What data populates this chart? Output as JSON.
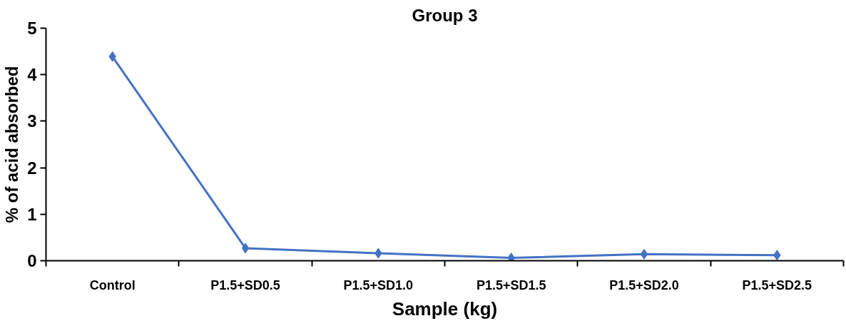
{
  "chart_data": {
    "type": "line",
    "title": "Group 3",
    "xlabel": "Sample (kg)",
    "ylabel": "% of acid absorbed",
    "categories": [
      "Control",
      "P1.5+SD0.5",
      "P1.5+SD1.0",
      "P1.5+SD1.5",
      "P1.5+SD2.0",
      "P1.5+SD2.5"
    ],
    "series": [
      {
        "color": "#4472c4",
        "values": [
          4.39,
          0.27,
          0.16,
          0.06,
          0.14,
          0.12
        ]
      }
    ],
    "ylim": [
      0,
      5
    ],
    "yticks": [
      0,
      1,
      2,
      3,
      4,
      5
    ],
    "grid": false,
    "marker": "diamond",
    "line_style": "solid"
  }
}
